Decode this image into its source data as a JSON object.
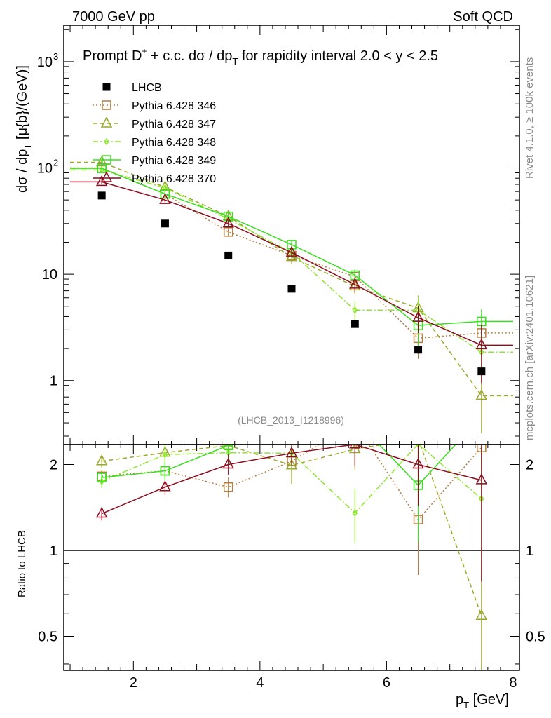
{
  "header": {
    "left": "7000 GeV pp",
    "right": "Soft QCD"
  },
  "side_labels": {
    "rivet": "Rivet 4.1.0, ≥ 100k events",
    "mcplots": "mcplots.cern.ch [arXiv:2401.10621]"
  },
  "chart_data": {
    "type": "line",
    "title_main": "Prompt D",
    "title_sup": "+",
    "title_rest": " + c.c.  dσ / dp",
    "title_sub": "T",
    "title_tail": " for rapidity interval 2.0 < y < 2.5",
    "ylabel": "dσ / dp",
    "ylabel_sub": "T",
    "ylabel_unit": " [μ{b}/(GeV)]",
    "xlabel": "p",
    "xlabel_sub": "T",
    "xlabel_unit": " [GeV]",
    "ratio_ylabel": "Ratio to LHCB",
    "analysis_tag": "(LHCB_2013_I1218996)",
    "xlim": [
      0.9,
      8.1
    ],
    "ylim": [
      0.25,
      2200
    ],
    "ratio_ylim": [
      0.38,
      2.35
    ],
    "xticks": [
      2,
      4,
      6,
      8
    ],
    "yticks": [
      {
        "v": 1,
        "label": "1"
      },
      {
        "v": 10,
        "label": "10"
      },
      {
        "v": 100,
        "label": "10",
        "exp": "2"
      },
      {
        "v": 1000,
        "label": "10",
        "exp": "3"
      }
    ],
    "ratio_yticks": [
      {
        "v": 0.5,
        "label": "0.5"
      },
      {
        "v": 1,
        "label": "1"
      },
      {
        "v": 2,
        "label": "2"
      }
    ],
    "x": [
      1.5,
      2.5,
      3.5,
      4.5,
      5.5,
      6.5,
      7.5
    ],
    "bin_edges": [
      1,
      2,
      3,
      4,
      5,
      6,
      7,
      8
    ],
    "data": {
      "name": "LHCB",
      "values": [
        55,
        30,
        15,
        7.3,
        3.4,
        1.95,
        1.22
      ]
    },
    "series": [
      {
        "name": "Pythia 6.428 346",
        "color": "#b57d3e",
        "dash": "2,3",
        "marker": "square",
        "values": [
          100,
          57,
          25,
          15,
          9.5,
          2.5,
          2.8
        ],
        "errors": [
          5,
          4,
          2,
          1.5,
          1.2,
          0.9,
          1.0
        ]
      },
      {
        "name": "Pythia 6.428 347",
        "color": "#9aa82b",
        "dash": "6,4",
        "marker": "triangle",
        "values": [
          113,
          66,
          35,
          14.5,
          7.7,
          4.8,
          0.72
        ],
        "errors": [
          6,
          5,
          3,
          2,
          1.2,
          1.5,
          0.4
        ]
      },
      {
        "name": "Pythia 6.428 348",
        "color": "#8ee62e",
        "dash": "8,3,2,3",
        "marker": "diamond",
        "values": [
          96,
          65,
          33,
          16,
          4.6,
          4.6,
          1.85
        ],
        "errors": [
          5,
          5,
          3,
          2,
          1.0,
          1.6,
          0.7
        ]
      },
      {
        "name": "Pythia 6.428 349",
        "color": "#38e01e",
        "dash": "",
        "marker": "square",
        "values": [
          99,
          57,
          35,
          19,
          9.8,
          3.3,
          3.6
        ],
        "errors": [
          5,
          4,
          3,
          2,
          1.5,
          1.2,
          1.1
        ]
      },
      {
        "name": "Pythia 6.428 370",
        "color": "#8c0d1e",
        "dash": "",
        "marker": "triangle",
        "values": [
          74,
          50,
          30,
          16,
          8.0,
          3.9,
          2.15
        ],
        "errors": [
          4,
          3,
          2.5,
          1.5,
          1.3,
          1.1,
          1.2
        ]
      }
    ]
  }
}
